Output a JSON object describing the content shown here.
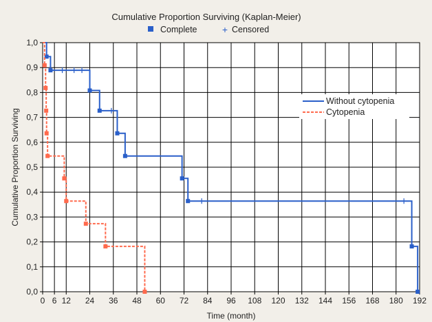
{
  "chart_data": {
    "type": "line",
    "title": "Cumulative Proportion Surviving (Kaplan-Meier)",
    "xlabel": "Time (month)",
    "ylabel": "Cumulative Proportion Surviving",
    "xlim": [
      0,
      192
    ],
    "ylim": [
      0,
      1.0
    ],
    "x_ticks": [
      "0",
      "6",
      "12",
      "24",
      "36",
      "48",
      "60",
      "72",
      "84",
      "96",
      "108",
      "120",
      "132",
      "144",
      "156",
      "168",
      "180",
      "192"
    ],
    "y_ticks": [
      "0,0",
      "0,1",
      "0,2",
      "0,3",
      "0,4",
      "0,5",
      "0,6",
      "0,7",
      "0,8",
      "0,9",
      "1,0"
    ],
    "grid": true,
    "marker_legend": [
      {
        "symbol": "square",
        "label": "Complete"
      },
      {
        "symbol": "plus",
        "label": "Censored"
      }
    ],
    "legend_placement": "right",
    "series": [
      {
        "name": "Without cytopenia",
        "color": "#2a5fc9",
        "style": "solid",
        "steps": [
          [
            0,
            1.0
          ],
          [
            2,
            0.944
          ],
          [
            4,
            0.889
          ],
          [
            24,
            0.808
          ],
          [
            29,
            0.727
          ],
          [
            38,
            0.636
          ],
          [
            42,
            0.545
          ],
          [
            71,
            0.455
          ],
          [
            74,
            0.364
          ],
          [
            188,
            0.182
          ],
          [
            191,
            0.0
          ]
        ],
        "censored": [
          [
            10,
            0.889
          ],
          [
            16,
            0.889
          ],
          [
            20,
            0.889
          ],
          [
            35,
            0.727
          ],
          [
            81,
            0.364
          ],
          [
            184,
            0.364
          ]
        ]
      },
      {
        "name": "Cytopenia",
        "color": "#ff6a4d",
        "style": "dashed",
        "steps": [
          [
            0,
            1.0
          ],
          [
            1,
            0.909
          ],
          [
            1.5,
            0.818
          ],
          [
            1.8,
            0.727
          ],
          [
            2,
            0.636
          ],
          [
            2.5,
            0.545
          ],
          [
            11,
            0.455
          ],
          [
            12,
            0.364
          ],
          [
            22,
            0.273
          ],
          [
            32,
            0.182
          ],
          [
            52,
            0.0
          ]
        ],
        "censored": []
      }
    ]
  }
}
